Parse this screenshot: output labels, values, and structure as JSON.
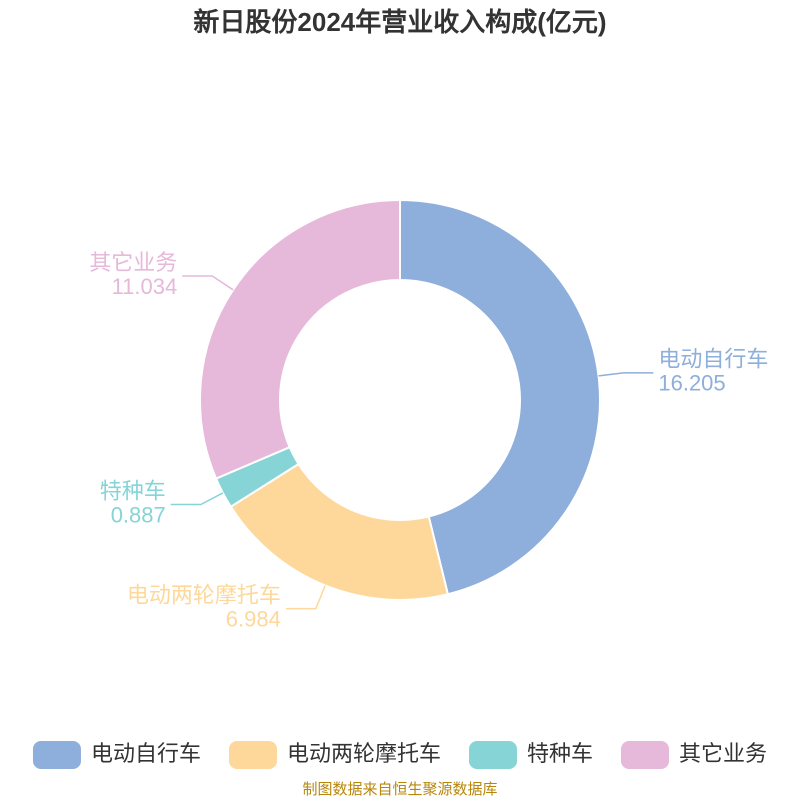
{
  "chart_data": {
    "type": "donut",
    "title": "新日股份2024年营业收入构成(亿元)",
    "categories": [
      "电动自行车",
      "电动两轮摩托车",
      "特种车",
      "其它业务"
    ],
    "values": [
      16.205,
      6.984,
      0.887,
      11.034
    ],
    "colors": [
      "#8eaedb",
      "#fdd89a",
      "#86d4d6",
      "#e6b8d9"
    ],
    "legend": "bottom",
    "source": "制图数据来自恒生聚源数据库"
  }
}
